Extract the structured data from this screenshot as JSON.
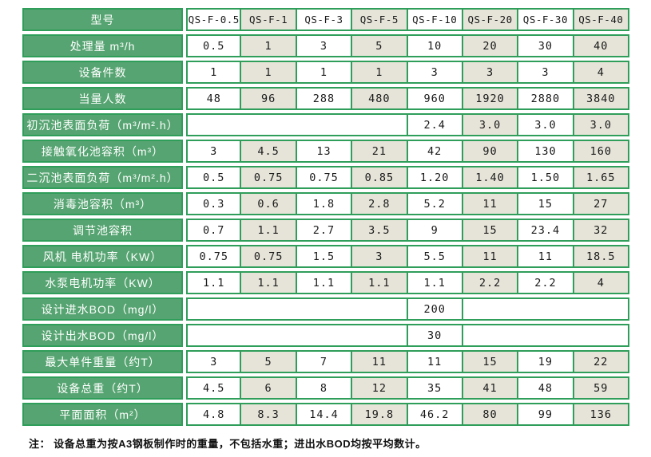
{
  "colors": {
    "label_green": "#56a471",
    "grid_green": "#2f9e5a",
    "cell_beige": "#e6e4d8",
    "cell_white": "#ffffff",
    "label_text": "#ffffff",
    "value_text": "#1b1b1b"
  },
  "table": {
    "header": {
      "label": "型号",
      "models": [
        "QS-F-0.5",
        "QS-F-1",
        "QS-F-3",
        "QS-F-5",
        "QS-F-10",
        "QS-F-20",
        "QS-F-30",
        "QS-F-40"
      ]
    },
    "rows": [
      {
        "label": "处理量 m³/h",
        "cells": [
          "0.5",
          "1",
          "3",
          "5",
          "10",
          "20",
          "30",
          "40"
        ]
      },
      {
        "label": "设备件数",
        "cells": [
          "1",
          "1",
          "1",
          "1",
          "3",
          "3",
          "3",
          "4"
        ]
      },
      {
        "label": "当量人数",
        "cells": [
          "48",
          "96",
          "288",
          "480",
          "960",
          "1920",
          "2880",
          "3840"
        ]
      },
      {
        "label": "初沉池表面负荷（m³/m².h）",
        "cells": [
          {
            "span": 4,
            "text": ""
          },
          "2.4",
          "3.0",
          "3.0",
          "3.0"
        ]
      },
      {
        "label": "接触氧化池容积（m³）",
        "cells": [
          "3",
          "4.5",
          "13",
          "21",
          "42",
          "90",
          "130",
          "160"
        ]
      },
      {
        "label": "二沉池表面负荷（m³/m².h）",
        "cells": [
          "0.5",
          "0.75",
          "0.75",
          "0.85",
          "1.20",
          "1.40",
          "1.50",
          "1.65"
        ]
      },
      {
        "label": "消毒池容积（m³）",
        "cells": [
          "0.3",
          "0.6",
          "1.8",
          "2.8",
          "5.2",
          "11",
          "15",
          "27"
        ]
      },
      {
        "label": "调节池容积",
        "cells": [
          "0.7",
          "1.1",
          "2.7",
          "3.5",
          "9",
          "15",
          "23.4",
          "32"
        ]
      },
      {
        "label": "风机 电机功率（KW）",
        "cells": [
          "0.75",
          "0.75",
          "1.5",
          "3",
          "5.5",
          "11",
          "11",
          "18.5"
        ]
      },
      {
        "label": "水泵电机功率（KW）",
        "cells": [
          "1.1",
          "1.1",
          "1.1",
          "1.1",
          "1.1",
          "2.2",
          "2.2",
          "4"
        ]
      },
      {
        "label": "设计进水BOD（mg/l）",
        "cells": [
          {
            "span": 4,
            "text": ""
          },
          "200",
          {
            "span": 3,
            "text": ""
          }
        ]
      },
      {
        "label": "设计出水BOD（mg/l）",
        "cells": [
          {
            "span": 4,
            "text": ""
          },
          "30",
          {
            "span": 3,
            "text": ""
          }
        ]
      },
      {
        "label": "最大单件重量（约T）",
        "cells": [
          "3",
          "5",
          "7",
          "11",
          "11",
          "15",
          "19",
          "22"
        ]
      },
      {
        "label": "设备总重（约T）",
        "cells": [
          "4.5",
          "6",
          "8",
          "12",
          "35",
          "41",
          "48",
          "59"
        ]
      },
      {
        "label": "平面面积（m²）",
        "cells": [
          "4.8",
          "8.3",
          "14.4",
          "19.8",
          "46.2",
          "80",
          "99",
          "136"
        ]
      }
    ],
    "footnote": "注： 设备总重为按A3钢板制作时的重量，不包括水重；进出水BOD均按平均数计。"
  }
}
